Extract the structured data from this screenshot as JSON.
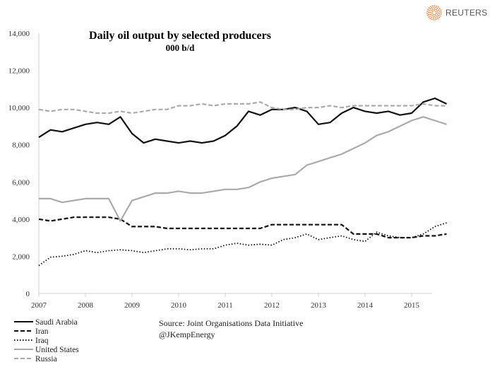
{
  "logo": {
    "text": "REUTERS",
    "color": "#e8772e"
  },
  "chart_data": {
    "type": "line",
    "title": "Daily oil output by selected producers",
    "subtitle": "000 b/d",
    "xlabel": "",
    "ylabel": "",
    "xlim": [
      2007,
      2015.85
    ],
    "ylim": [
      0,
      14000
    ],
    "yticks": [
      0,
      2000,
      4000,
      6000,
      8000,
      10000,
      12000,
      14000
    ],
    "ytick_labels": [
      "0",
      "2,000",
      "4,000",
      "6,000",
      "8,000",
      "10,000",
      "12,000",
      "14,000"
    ],
    "xticks": [
      2007,
      2008,
      2009,
      2010,
      2011,
      2012,
      2013,
      2014,
      2015
    ],
    "xtick_labels": [
      "2007",
      "2008",
      "2009",
      "2010",
      "2011",
      "2012",
      "2013",
      "2014",
      "2015"
    ],
    "grid": false,
    "legend": "bottom-left",
    "x": [
      2007,
      2007.25,
      2007.5,
      2007.75,
      2008,
      2008.25,
      2008.5,
      2008.75,
      2009,
      2009.25,
      2009.5,
      2009.75,
      2010,
      2010.25,
      2010.5,
      2010.75,
      2011,
      2011.25,
      2011.5,
      2011.75,
      2012,
      2012.25,
      2012.5,
      2012.75,
      2013,
      2013.25,
      2013.5,
      2013.75,
      2014,
      2014.25,
      2014.5,
      2014.75,
      2015,
      2015.25,
      2015.5,
      2015.75
    ],
    "series": [
      {
        "name": "Saudi Arabia",
        "color": "#111111",
        "dash": "solid",
        "values": [
          8400,
          8800,
          8700,
          8900,
          9100,
          9200,
          9100,
          9500,
          8600,
          8100,
          8300,
          8200,
          8100,
          8200,
          8100,
          8200,
          8500,
          9000,
          9800,
          9600,
          9900,
          9900,
          10000,
          9800,
          9100,
          9200,
          9700,
          10000,
          9800,
          9700,
          9800,
          9600,
          9700,
          10300,
          10500,
          10200
        ]
      },
      {
        "name": "Iran",
        "color": "#111111",
        "dash": "dash",
        "values": [
          4000,
          3900,
          4000,
          4100,
          4100,
          4100,
          4100,
          4000,
          3600,
          3600,
          3600,
          3500,
          3500,
          3500,
          3500,
          3500,
          3500,
          3500,
          3500,
          3500,
          3700,
          3700,
          3700,
          3700,
          3700,
          3700,
          3700,
          3200,
          3200,
          3200,
          3000,
          3000,
          3000,
          3100,
          3100,
          3200
        ]
      },
      {
        "name": "Iraq",
        "color": "#111111",
        "dash": "dot",
        "values": [
          1500,
          1950,
          2000,
          2100,
          2300,
          2200,
          2300,
          2350,
          2300,
          2200,
          2300,
          2400,
          2400,
          2350,
          2400,
          2400,
          2600,
          2700,
          2600,
          2650,
          2600,
          2900,
          3000,
          3200,
          2900,
          3000,
          3100,
          2900,
          2800,
          3300,
          3100,
          3000,
          3000,
          3200,
          3600,
          3800
        ]
      },
      {
        "name": "United States",
        "color": "#aaaaaa",
        "dash": "solid",
        "values": [
          5100,
          5100,
          4900,
          5000,
          5100,
          5100,
          5100,
          3900,
          5000,
          5200,
          5400,
          5400,
          5500,
          5400,
          5400,
          5500,
          5600,
          5600,
          5700,
          6000,
          6200,
          6300,
          6400,
          6900,
          7100,
          7300,
          7500,
          7800,
          8100,
          8500,
          8700,
          9000,
          9300,
          9500,
          9300,
          9100
        ]
      },
      {
        "name": "Russia",
        "color": "#aaaaaa",
        "dash": "dash",
        "values": [
          9900,
          9800,
          9900,
          9900,
          9800,
          9700,
          9700,
          9800,
          9700,
          9800,
          9900,
          9900,
          10100,
          10100,
          10200,
          10100,
          10200,
          10200,
          10200,
          10300,
          10000,
          9900,
          9900,
          10000,
          10000,
          10100,
          10000,
          10100,
          10100,
          10100,
          10100,
          10100,
          10100,
          10200,
          10100,
          10100
        ]
      }
    ]
  },
  "source": {
    "line1": "Source: Joint Organisations Data Initiative",
    "line2": "@JKempEnergy"
  }
}
